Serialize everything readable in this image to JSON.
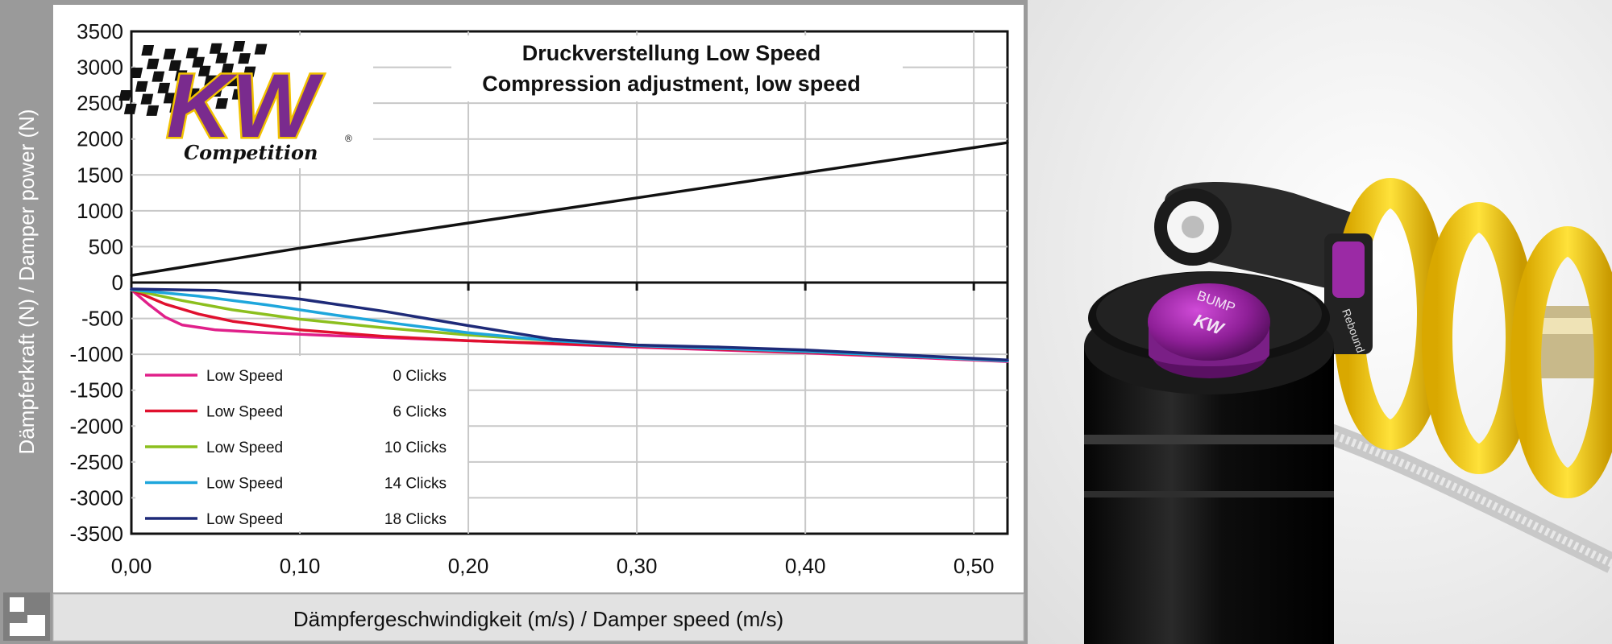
{
  "chart_data": {
    "type": "line",
    "title": "Druckverstellung Low Speed",
    "subtitle": "Compression adjustment, low speed",
    "xlabel": "Dämpfergeschwindigkeit (m/s) / Damper speed (m/s)",
    "ylabel": "Dämpferkraft (N) / Damper power (N)",
    "xlim": [
      0,
      0.52
    ],
    "ylim": [
      -3500,
      3500
    ],
    "x_ticks": [
      "0,00",
      "0,10",
      "0,20",
      "0,30",
      "0,40",
      "0,50"
    ],
    "x_tick_values": [
      0,
      0.1,
      0.2,
      0.3,
      0.4,
      0.5
    ],
    "y_ticks": [
      "3500",
      "3000",
      "2500",
      "2000",
      "1500",
      "1000",
      "500",
      "0",
      "-500",
      "-1000",
      "-1500",
      "-2000",
      "-2500",
      "-3000",
      "-3500"
    ],
    "y_tick_values": [
      3500,
      3000,
      2500,
      2000,
      1500,
      1000,
      500,
      0,
      -500,
      -1000,
      -1500,
      -2000,
      -2500,
      -3000,
      -3500
    ],
    "grid": true,
    "legend_position": "bottom-left",
    "series": [
      {
        "name": "",
        "color": "#111111",
        "x": [
          0,
          0.1,
          0.2,
          0.3,
          0.4,
          0.5,
          0.52
        ],
        "y": [
          100,
          480,
          830,
          1180,
          1530,
          1880,
          1950
        ]
      },
      {
        "legend": "Low Speed",
        "clicks": "0 Clicks",
        "color": "#e0208a",
        "x": [
          0,
          0.01,
          0.02,
          0.03,
          0.05,
          0.08,
          0.12,
          0.2,
          0.3,
          0.4,
          0.52
        ],
        "y": [
          -100,
          -300,
          -480,
          -590,
          -660,
          -700,
          -740,
          -810,
          -900,
          -980,
          -1100
        ]
      },
      {
        "legend": "Low Speed",
        "clicks": "6 Clicks",
        "color": "#e0102e",
        "x": [
          0,
          0.02,
          0.04,
          0.06,
          0.1,
          0.15,
          0.2,
          0.3,
          0.4,
          0.52
        ],
        "y": [
          -100,
          -300,
          -440,
          -540,
          -660,
          -750,
          -810,
          -890,
          -970,
          -1090
        ]
      },
      {
        "legend": "Low Speed",
        "clicks": "10 Clicks",
        "color": "#8cbf1e",
        "x": [
          0,
          0.03,
          0.06,
          0.1,
          0.15,
          0.2,
          0.25,
          0.3,
          0.4,
          0.52
        ],
        "y": [
          -100,
          -250,
          -380,
          -510,
          -630,
          -730,
          -810,
          -870,
          -960,
          -1090
        ]
      },
      {
        "legend": "Low Speed",
        "clicks": "14 Clicks",
        "color": "#1ea6dc",
        "x": [
          0,
          0.04,
          0.08,
          0.12,
          0.16,
          0.2,
          0.25,
          0.3,
          0.4,
          0.52
        ],
        "y": [
          -100,
          -190,
          -310,
          -450,
          -580,
          -700,
          -810,
          -880,
          -960,
          -1090
        ]
      },
      {
        "legend": "Low Speed",
        "clicks": "18 Clicks",
        "color": "#1e2a78",
        "x": [
          0,
          0.05,
          0.1,
          0.15,
          0.2,
          0.25,
          0.3,
          0.35,
          0.4,
          0.52
        ],
        "y": [
          -90,
          -110,
          -230,
          -400,
          -600,
          -790,
          -870,
          -900,
          -940,
          -1080
        ]
      }
    ]
  },
  "logo": {
    "text": "KW",
    "tagline": "Competition"
  },
  "photo": {
    "knob_label": "BUMP",
    "knob_brand": "KW",
    "rebound_label": "Rebound"
  }
}
